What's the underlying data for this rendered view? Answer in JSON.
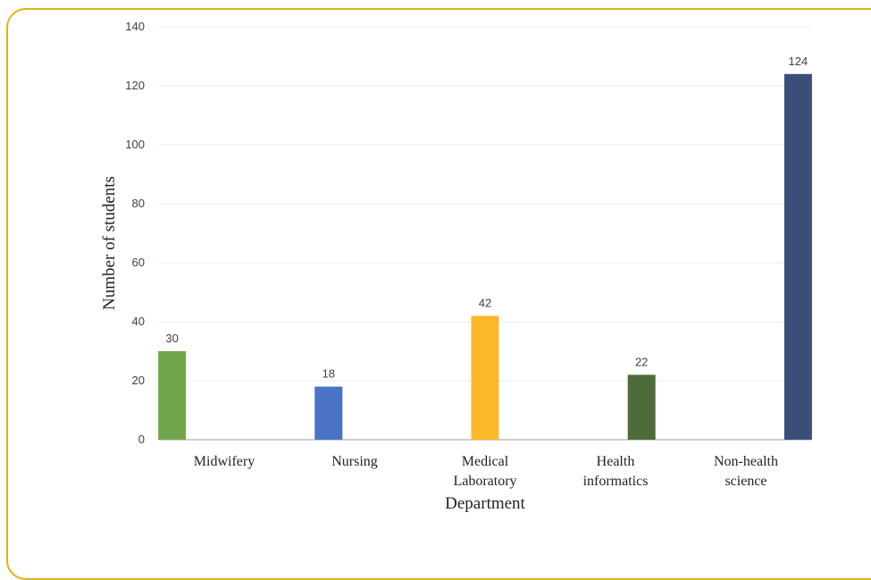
{
  "chart_data": {
    "type": "bar",
    "categories": [
      [
        "Midwifery"
      ],
      [
        "Nursing"
      ],
      [
        "Medical",
        "Laboratory"
      ],
      [
        "Health",
        "informatics"
      ],
      [
        "Non-health",
        "science"
      ]
    ],
    "values": [
      30,
      18,
      42,
      22,
      124
    ],
    "colors": [
      "#70a64b",
      "#4a73c4",
      "#fbb829",
      "#4e6b3a",
      "#3a4e78"
    ],
    "xlabel": "Department",
    "ylabel": "Number of students",
    "ylim": [
      0,
      140
    ],
    "yticks": [
      0,
      20,
      40,
      60,
      80,
      100,
      120,
      140
    ],
    "grid": true,
    "data_labels": true
  }
}
